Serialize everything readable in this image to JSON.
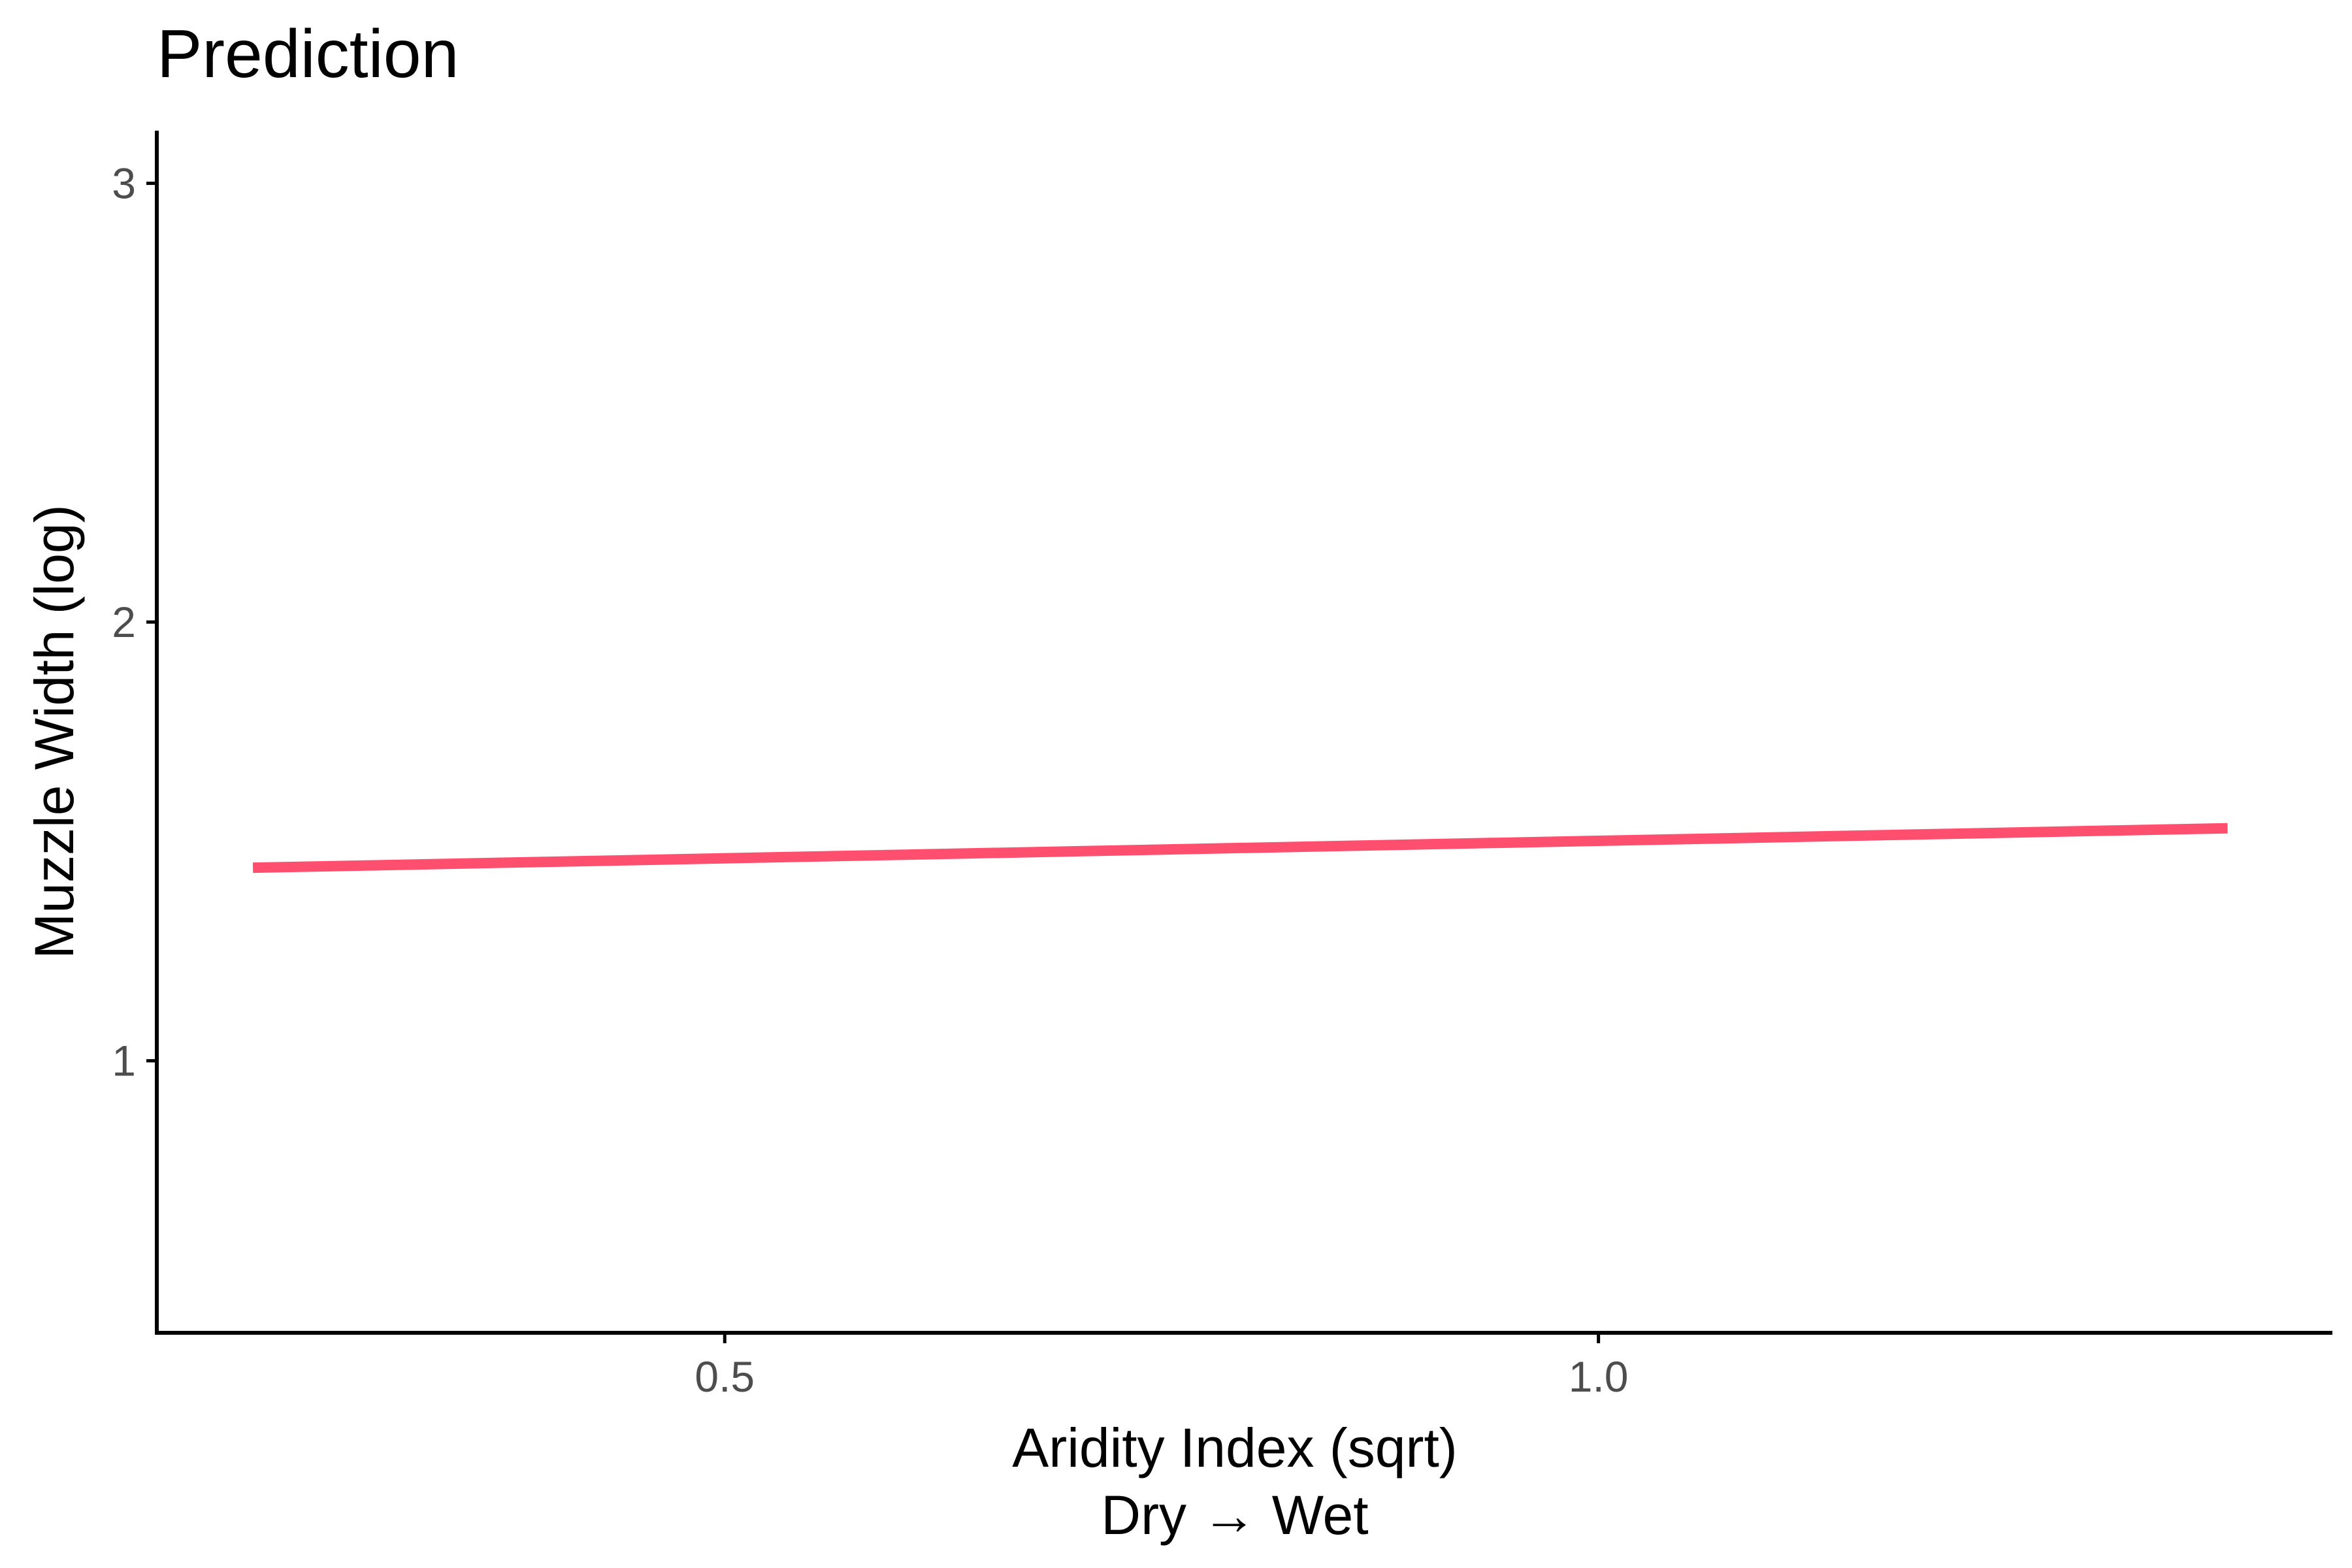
{
  "chart_data": {
    "type": "line",
    "title": "Prediction",
    "xlabel": "Aridity Index (sqrt)",
    "xlabel_line2": "Dry → Wet",
    "ylabel": "Muzzle Width (log)",
    "xlim": [
      0.175,
      1.42
    ],
    "ylim": [
      0.38,
      3.12
    ],
    "x_ticks": [
      0.5,
      1.0
    ],
    "x_tick_labels": [
      "0.5",
      "1.0"
    ],
    "y_ticks": [
      1,
      2,
      3
    ],
    "y_tick_labels": [
      "1",
      "2",
      "3"
    ],
    "grid": false,
    "legend": "none",
    "series": [
      {
        "color": "#ff4f6e",
        "x": [
          0.23,
          1.36
        ],
        "y": [
          1.44,
          1.53
        ]
      }
    ]
  }
}
